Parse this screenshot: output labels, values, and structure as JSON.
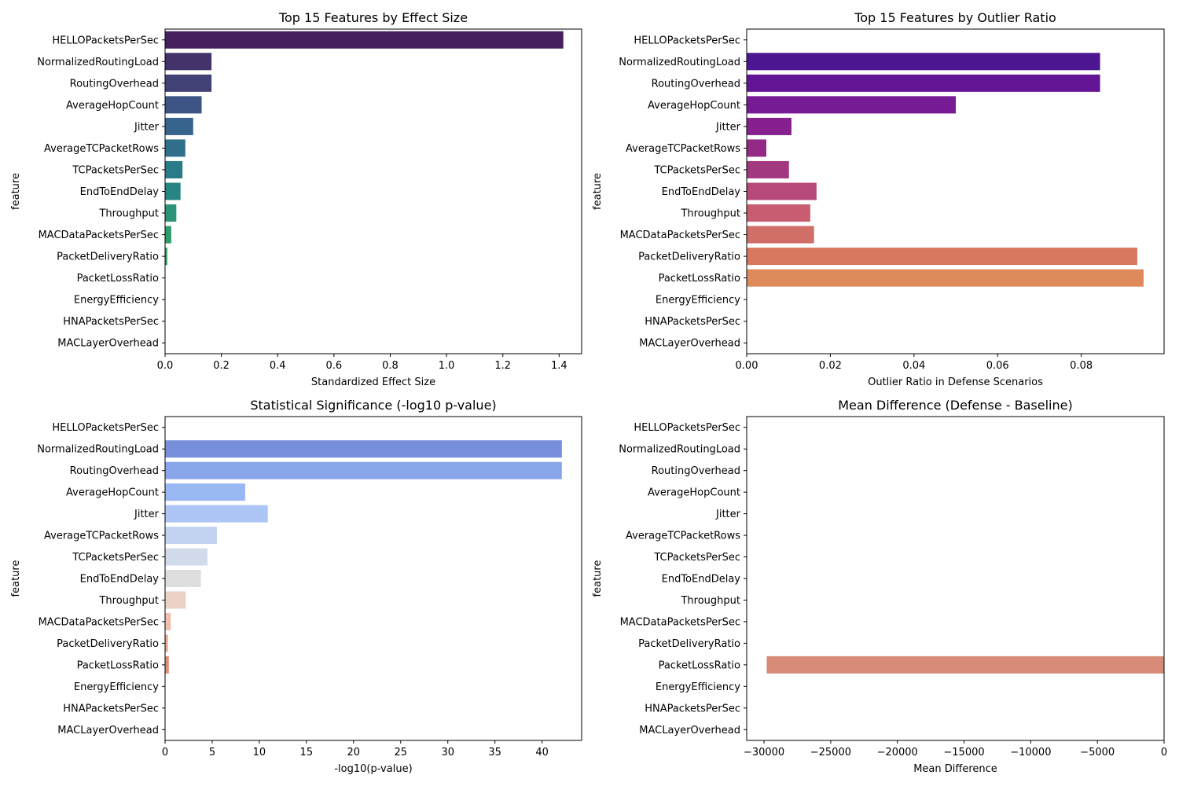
{
  "chart_data": [
    {
      "type": "bar",
      "orientation": "horizontal",
      "title": "Top 15 Features by Effect Size",
      "xlabel": "Standardized Effect Size",
      "ylabel": "feature",
      "categories": [
        "HELLOPacketsPerSec",
        "NormalizedRoutingLoad",
        "RoutingOverhead",
        "AverageHopCount",
        "Jitter",
        "AverageTCPacketRows",
        "TCPacketsPerSec",
        "EndToEndDelay",
        "Throughput",
        "MACDataPacketsPerSec",
        "PacketDeliveryRatio",
        "PacketLossRatio",
        "EnergyEfficiency",
        "HNAPacketsPerSec",
        "MACLayerOverhead"
      ],
      "values": [
        1.415,
        0.165,
        0.165,
        0.13,
        0.1,
        0.072,
        0.062,
        0.055,
        0.04,
        0.022,
        0.008,
        0,
        0,
        0,
        0
      ],
      "xlim": [
        0,
        1.48
      ],
      "xticks": [
        0,
        0.2,
        0.4,
        0.6,
        0.8,
        1.0,
        1.2,
        1.4
      ],
      "xtick_labels": [
        "0.0",
        "0.2",
        "0.4",
        "0.6",
        "0.8",
        "1.0",
        "1.2",
        "1.4"
      ],
      "grid": false,
      "colors": [
        "#46205e",
        "#44336a",
        "#424276",
        "#3c5584",
        "#36648d",
        "#306f8c",
        "#2a7b88",
        "#268583",
        "#2b9478",
        "#2f9c6c",
        "#33a45e",
        "#3aad5b",
        "#40b556",
        "#48bd52",
        "#52c54d"
      ]
    },
    {
      "type": "bar",
      "orientation": "horizontal",
      "title": "Top 15 Features by Outlier Ratio",
      "xlabel": "Outlier Ratio in Defense Scenarios",
      "ylabel": "feature",
      "categories": [
        "HELLOPacketsPerSec",
        "NormalizedRoutingLoad",
        "RoutingOverhead",
        "AverageHopCount",
        "Jitter",
        "AverageTCPacketRows",
        "TCPacketsPerSec",
        "EndToEndDelay",
        "Throughput",
        "MACDataPacketsPerSec",
        "PacketDeliveryRatio",
        "PacketLossRatio",
        "EnergyEfficiency",
        "HNAPacketsPerSec",
        "MACLayerOverhead"
      ],
      "values": [
        0,
        0.0845,
        0.0845,
        0.05,
        0.0107,
        0.0047,
        0.0101,
        0.0167,
        0.0152,
        0.0161,
        0.0934,
        0.0949,
        0,
        0,
        0
      ],
      "xlim": [
        0,
        0.0998
      ],
      "xticks": [
        0,
        0.02,
        0.04,
        0.06,
        0.08
      ],
      "xtick_labels": [
        "0.00",
        "0.02",
        "0.04",
        "0.06",
        "0.08"
      ],
      "grid": false,
      "colors": [
        "#2e1a8a",
        "#4c1790",
        "#641596",
        "#771a95",
        "#86208f",
        "#932b86",
        "#a2387f",
        "#b74979",
        "#c85c70",
        "#d06e68",
        "#d8795f",
        "#df8a5a",
        "#e69b54",
        "#ecac4e",
        "#f2bd48"
      ]
    },
    {
      "type": "bar",
      "orientation": "horizontal",
      "title": "Statistical Significance (-log10 p-value)",
      "xlabel": "-log10(p-value)",
      "ylabel": "feature",
      "categories": [
        "HELLOPacketsPerSec",
        "NormalizedRoutingLoad",
        "RoutingOverhead",
        "AverageHopCount",
        "Jitter",
        "AverageTCPacketRows",
        "TCPacketsPerSec",
        "EndToEndDelay",
        "Throughput",
        "MACDataPacketsPerSec",
        "PacketDeliveryRatio",
        "PacketLossRatio",
        "EnergyEfficiency",
        "HNAPacketsPerSec",
        "MACLayerOverhead"
      ],
      "values": [
        0,
        42.1,
        42.1,
        8.5,
        10.9,
        5.5,
        4.5,
        3.8,
        2.2,
        0.6,
        0.3,
        0.4,
        0,
        0,
        0
      ],
      "xlim": [
        0,
        44.2
      ],
      "xticks": [
        0,
        5,
        10,
        15,
        20,
        25,
        30,
        35,
        40
      ],
      "xtick_labels": [
        "0",
        "5",
        "10",
        "15",
        "20",
        "25",
        "30",
        "35",
        "40"
      ],
      "grid": false,
      "colors": [
        "#5a6fd6",
        "#778edb",
        "#89a6eb",
        "#99b7f3",
        "#aec6f6",
        "#c2d3f2",
        "#d2dbea",
        "#dedede",
        "#ead2c6",
        "#efc1ad",
        "#eaa88f",
        "#e09074",
        "#d17a60",
        "#c0624f",
        "#ad4d41"
      ]
    },
    {
      "type": "bar",
      "orientation": "horizontal",
      "title": "Mean Difference (Defense - Baseline)",
      "xlabel": "Mean Difference",
      "ylabel": "feature",
      "categories": [
        "HELLOPacketsPerSec",
        "NormalizedRoutingLoad",
        "RoutingOverhead",
        "AverageHopCount",
        "Jitter",
        "AverageTCPacketRows",
        "TCPacketsPerSec",
        "EndToEndDelay",
        "Throughput",
        "MACDataPacketsPerSec",
        "PacketDeliveryRatio",
        "PacketLossRatio",
        "EnergyEfficiency",
        "HNAPacketsPerSec",
        "MACLayerOverhead"
      ],
      "values": [
        0,
        0,
        0,
        0,
        0,
        0,
        0,
        0,
        0,
        0,
        0,
        -29800,
        0,
        0,
        0
      ],
      "xlim": [
        -31300,
        0
      ],
      "xticks": [
        -30000,
        -25000,
        -20000,
        -15000,
        -10000,
        -5000,
        0
      ],
      "xtick_labels": [
        "−30000",
        "−25000",
        "−20000",
        "−15000",
        "−10000",
        "−5000",
        "0"
      ],
      "grid": false,
      "colors": [
        "#d68a77",
        "#d68a77",
        "#d68a77",
        "#d68a77",
        "#d68a77",
        "#d68a77",
        "#d68a77",
        "#d68a77",
        "#d68a77",
        "#d68a77",
        "#d68a77",
        "#d68a77",
        "#d68a77",
        "#d68a77",
        "#d68a77"
      ]
    }
  ]
}
